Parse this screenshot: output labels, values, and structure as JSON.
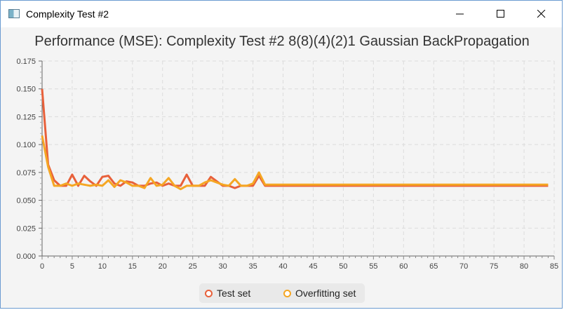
{
  "window": {
    "title": "Complexity Test #2",
    "icon": "java-app-icon"
  },
  "controls": {
    "minimize": "minimize-icon",
    "maximize": "maximize-icon",
    "close": "close-icon"
  },
  "chart_data": {
    "type": "line",
    "title": "Performance (MSE): Complexity Test #2 8(8)(4)(2)1 Gaussian BackPropagation",
    "xlabel": "",
    "ylabel": "",
    "xlim": [
      0,
      85
    ],
    "ylim": [
      0,
      0.175
    ],
    "x_ticks": [
      0,
      5,
      10,
      15,
      20,
      25,
      30,
      35,
      40,
      45,
      50,
      55,
      60,
      65,
      70,
      75,
      80,
      85
    ],
    "y_ticks": [
      0.0,
      0.025,
      0.05,
      0.075,
      0.1,
      0.125,
      0.15,
      0.175
    ],
    "grid": true,
    "legend": "bottom-center",
    "x": [
      0,
      1,
      2,
      3,
      4,
      5,
      6,
      7,
      8,
      9,
      10,
      11,
      12,
      13,
      14,
      15,
      16,
      17,
      18,
      19,
      20,
      21,
      22,
      23,
      24,
      25,
      26,
      27,
      28,
      29,
      30,
      31,
      32,
      33,
      34,
      35,
      36,
      37,
      38,
      39,
      40,
      41,
      42,
      43,
      44,
      45,
      46,
      47,
      48,
      49,
      50,
      51,
      52,
      53,
      54,
      55,
      56,
      57,
      58,
      59,
      60,
      61,
      62,
      63,
      64,
      65,
      66,
      67,
      68,
      69,
      70,
      71,
      72,
      73,
      74,
      75,
      76,
      77,
      78,
      79,
      80,
      81,
      82,
      83,
      84
    ],
    "series": [
      {
        "name": "Test set",
        "color": "#e8603a",
        "values": [
          0.15,
          0.082,
          0.068,
          0.063,
          0.063,
          0.073,
          0.063,
          0.072,
          0.067,
          0.063,
          0.071,
          0.072,
          0.065,
          0.063,
          0.067,
          0.066,
          0.063,
          0.063,
          0.065,
          0.066,
          0.063,
          0.065,
          0.063,
          0.063,
          0.073,
          0.063,
          0.063,
          0.063,
          0.071,
          0.067,
          0.063,
          0.063,
          0.061,
          0.063,
          0.063,
          0.063,
          0.072,
          0.063,
          0.063,
          0.063,
          0.063,
          0.063,
          0.063,
          0.063,
          0.063,
          0.063,
          0.063,
          0.063,
          0.063,
          0.063,
          0.063,
          0.063,
          0.063,
          0.063,
          0.063,
          0.063,
          0.063,
          0.063,
          0.063,
          0.063,
          0.063,
          0.063,
          0.063,
          0.063,
          0.063,
          0.063,
          0.063,
          0.063,
          0.063,
          0.063,
          0.063,
          0.063,
          0.063,
          0.063,
          0.063,
          0.063,
          0.063,
          0.063,
          0.063,
          0.063,
          0.063,
          0.063,
          0.063,
          0.063,
          0.063
        ]
      },
      {
        "name": "Overfitting set",
        "color": "#f5a623",
        "values": [
          0.108,
          0.08,
          0.063,
          0.063,
          0.065,
          0.063,
          0.065,
          0.064,
          0.063,
          0.064,
          0.063,
          0.068,
          0.062,
          0.068,
          0.066,
          0.063,
          0.063,
          0.061,
          0.07,
          0.063,
          0.064,
          0.07,
          0.063,
          0.06,
          0.063,
          0.063,
          0.063,
          0.066,
          0.068,
          0.066,
          0.064,
          0.063,
          0.069,
          0.063,
          0.063,
          0.065,
          0.075,
          0.064,
          0.064,
          0.064,
          0.064,
          0.064,
          0.064,
          0.064,
          0.064,
          0.064,
          0.064,
          0.064,
          0.064,
          0.064,
          0.064,
          0.064,
          0.064,
          0.064,
          0.064,
          0.064,
          0.064,
          0.064,
          0.064,
          0.064,
          0.064,
          0.064,
          0.064,
          0.064,
          0.064,
          0.064,
          0.064,
          0.064,
          0.064,
          0.064,
          0.064,
          0.064,
          0.064,
          0.064,
          0.064,
          0.064,
          0.064,
          0.064,
          0.064,
          0.064,
          0.064,
          0.064,
          0.064,
          0.064,
          0.064
        ]
      }
    ]
  }
}
